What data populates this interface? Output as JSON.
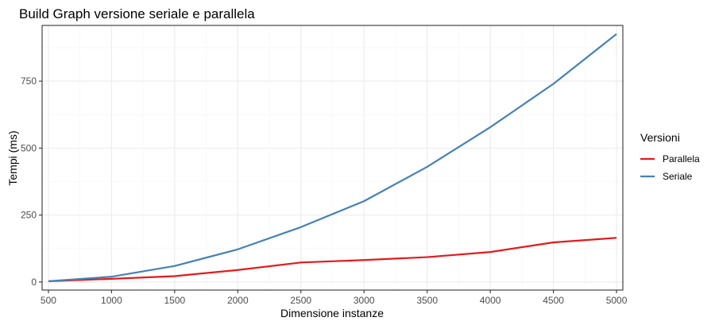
{
  "chart_data": {
    "type": "line",
    "title": "Build Graph versione seriale e parallela",
    "xlabel": "Dimensione instanze",
    "ylabel": "Tempi (ms)",
    "x": [
      500,
      1000,
      1500,
      2000,
      2500,
      3000,
      3500,
      4000,
      4500,
      5000
    ],
    "xlim": [
      450,
      5050
    ],
    "ylim": [
      -30,
      958
    ],
    "x_ticks": [
      "500",
      "1000",
      "1500",
      "2000",
      "2500",
      "3000",
      "3500",
      "4000",
      "4500",
      "5000"
    ],
    "x_tick_values": [
      500,
      1000,
      1500,
      2000,
      2500,
      3000,
      3500,
      4000,
      4500,
      5000
    ],
    "x_minor_ticks": [
      750,
      1250,
      1750,
      2250,
      2750,
      3250,
      3750,
      4250,
      4750
    ],
    "y_ticks": [
      "0",
      "250",
      "500",
      "750"
    ],
    "y_tick_values": [
      0,
      250,
      500,
      750
    ],
    "y_minor_ticks": [
      125,
      375,
      625,
      875
    ],
    "grid": true,
    "legend": {
      "title": "Versioni",
      "placement": "right"
    },
    "series": [
      {
        "name": "Parallela",
        "color": "#e41a1c",
        "values": [
          3,
          12,
          22,
          45,
          73,
          82,
          93,
          112,
          148,
          165
        ]
      },
      {
        "name": "Seriale",
        "color": "#4682b4",
        "values": [
          3,
          20,
          60,
          122,
          205,
          302,
          430,
          578,
          740,
          926
        ]
      }
    ],
    "colors": {
      "panel_border": "#333333",
      "grid_major": "#ebebeb",
      "grid_minor": "#f5f5f5",
      "tick_text": "#4d4d4d",
      "text": "#000000"
    }
  }
}
